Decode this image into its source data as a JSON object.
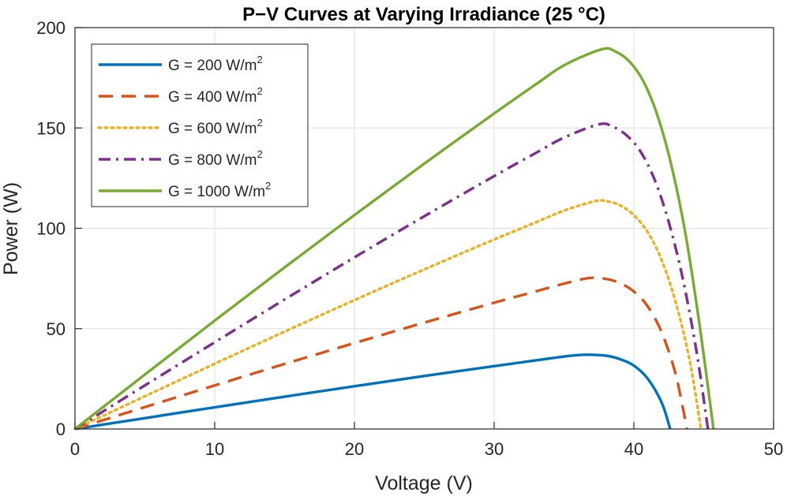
{
  "chart_data": {
    "type": "line",
    "title": "P−V Curves at Varying Irradiance (25 °C)",
    "xlabel": "Voltage (V)",
    "ylabel": "Power (W)",
    "xlim": [
      0,
      50
    ],
    "ylim": [
      0,
      200
    ],
    "xticks": [
      0,
      10,
      20,
      30,
      40,
      50
    ],
    "yticks": [
      0,
      50,
      100,
      150,
      200
    ],
    "xtick_labels": [
      "0",
      "10",
      "20",
      "30",
      "40",
      "50"
    ],
    "ytick_labels": [
      "0",
      "50",
      "100",
      "150",
      "200"
    ],
    "grid": true,
    "legend_position": "top-left",
    "series": [
      {
        "name": "G = 200 W/m2",
        "legend_main": "G = 200 W/m",
        "legend_sup": "2",
        "color": "#0072BD",
        "style": "solid",
        "x": [
          0,
          5,
          10,
          15,
          20,
          25,
          30,
          33,
          35,
          36.5,
          38,
          39,
          40,
          41,
          42,
          42.6
        ],
        "y": [
          0,
          5.4,
          10.8,
          16.1,
          21.3,
          26.4,
          31.3,
          34.2,
          36.1,
          37.0,
          36.5,
          34.8,
          31.6,
          25.0,
          13.0,
          0
        ]
      },
      {
        "name": "G = 400 W/m2",
        "legend_main": "G = 400 W/m",
        "legend_sup": "2",
        "color": "#D95319",
        "style": "dashed",
        "x": [
          0,
          5,
          10,
          15,
          20,
          25,
          30,
          33,
          35,
          36.8,
          38,
          39,
          40,
          41,
          42,
          43,
          43.8
        ],
        "y": [
          0,
          10.9,
          21.7,
          32.4,
          42.8,
          53.0,
          62.9,
          68.6,
          72.4,
          75.2,
          74.8,
          72.7,
          68.5,
          61.0,
          48.0,
          27.0,
          0
        ]
      },
      {
        "name": "G = 600 W/m2",
        "legend_main": "G = 600 W/m",
        "legend_sup": "2",
        "color": "#EDB120",
        "style": "dotted",
        "x": [
          0,
          5,
          10,
          15,
          20,
          25,
          30,
          33,
          35,
          37.2,
          38,
          39,
          40,
          41,
          42,
          43,
          44,
          44.8
        ],
        "y": [
          0,
          16.3,
          32.5,
          48.5,
          64.2,
          79.5,
          94.4,
          103.0,
          108.8,
          113.5,
          113.5,
          111.5,
          106.5,
          98.0,
          84.0,
          63.0,
          34.0,
          0
        ]
      },
      {
        "name": "G = 800 W/m2",
        "legend_main": "G = 800 W/m",
        "legend_sup": "2",
        "color": "#7E2F8E",
        "style": "dashdot",
        "x": [
          0,
          5,
          10,
          15,
          20,
          25,
          30,
          33,
          35,
          37.5,
          38.5,
          39.5,
          40.5,
          41.5,
          42.5,
          43.5,
          44.5,
          45.3
        ],
        "y": [
          0,
          21.7,
          43.2,
          64.5,
          85.5,
          106.0,
          126.0,
          137.6,
          145.2,
          151.8,
          150.6,
          146.2,
          138.0,
          124.0,
          103.0,
          75.0,
          38.0,
          0
        ]
      },
      {
        "name": "G = 1000 W/m2",
        "legend_main": "G = 1000 W/m",
        "legend_sup": "2",
        "color": "#77AC30",
        "style": "solid",
        "x": [
          0,
          5,
          10,
          15,
          20,
          25,
          30,
          33,
          35,
          37.7,
          38.7,
          39.7,
          40.7,
          41.7,
          42.7,
          43.7,
          44.7,
          45.7
        ],
        "y": [
          0,
          27.1,
          54.0,
          80.5,
          106.6,
          132.2,
          157.2,
          171.8,
          181.2,
          189.2,
          188.0,
          183.0,
          173.0,
          156.0,
          131.0,
          97.0,
          52.0,
          0
        ]
      }
    ]
  }
}
